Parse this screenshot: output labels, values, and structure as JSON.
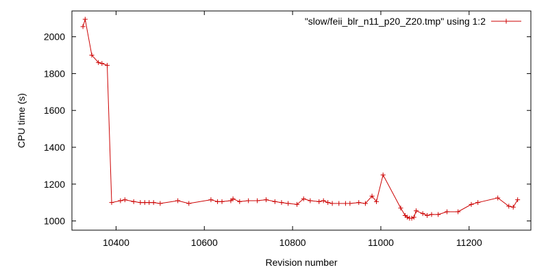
{
  "chart_data": {
    "type": "line",
    "xlabel": "Revision number",
    "ylabel": "CPU time (s)",
    "xlim": [
      10300,
      11340
    ],
    "ylim": [
      950,
      2140
    ],
    "x_ticks": [
      10400,
      10600,
      10800,
      11000,
      11200
    ],
    "y_ticks": [
      1000,
      1200,
      1400,
      1600,
      1800,
      2000
    ],
    "grid": false,
    "legend_position": "top-right",
    "series": [
      {
        "name": "\"slow/feii_blr_n11_p20_Z20.tmp\" using 1:2",
        "color": "#cc0000",
        "marker": "plus",
        "points": [
          [
            10325,
            2055
          ],
          [
            10330,
            2095
          ],
          [
            10345,
            1900
          ],
          [
            10360,
            1860
          ],
          [
            10368,
            1855
          ],
          [
            10380,
            1845
          ],
          [
            10390,
            1100
          ],
          [
            10410,
            1110
          ],
          [
            10420,
            1115
          ],
          [
            10440,
            1105
          ],
          [
            10455,
            1100
          ],
          [
            10465,
            1100
          ],
          [
            10475,
            1100
          ],
          [
            10485,
            1100
          ],
          [
            10500,
            1095
          ],
          [
            10540,
            1110
          ],
          [
            10565,
            1095
          ],
          [
            10615,
            1115
          ],
          [
            10630,
            1105
          ],
          [
            10640,
            1105
          ],
          [
            10660,
            1110
          ],
          [
            10665,
            1120
          ],
          [
            10680,
            1105
          ],
          [
            10700,
            1110
          ],
          [
            10720,
            1110
          ],
          [
            10740,
            1115
          ],
          [
            10760,
            1105
          ],
          [
            10775,
            1100
          ],
          [
            10790,
            1095
          ],
          [
            10810,
            1090
          ],
          [
            10825,
            1120
          ],
          [
            10840,
            1110
          ],
          [
            10860,
            1105
          ],
          [
            10870,
            1110
          ],
          [
            10880,
            1100
          ],
          [
            10890,
            1095
          ],
          [
            10905,
            1095
          ],
          [
            10920,
            1095
          ],
          [
            10930,
            1095
          ],
          [
            10950,
            1100
          ],
          [
            10965,
            1095
          ],
          [
            10980,
            1135
          ],
          [
            10990,
            1105
          ],
          [
            11005,
            1250
          ],
          [
            11045,
            1070
          ],
          [
            11055,
            1030
          ],
          [
            11060,
            1020
          ],
          [
            11065,
            1015
          ],
          [
            11070,
            1015
          ],
          [
            11075,
            1020
          ],
          [
            11080,
            1055
          ],
          [
            11095,
            1040
          ],
          [
            11105,
            1030
          ],
          [
            11115,
            1035
          ],
          [
            11130,
            1035
          ],
          [
            11150,
            1050
          ],
          [
            11175,
            1050
          ],
          [
            11205,
            1090
          ],
          [
            11220,
            1100
          ],
          [
            11265,
            1125
          ],
          [
            11290,
            1080
          ],
          [
            11300,
            1075
          ],
          [
            11310,
            1115
          ]
        ]
      }
    ]
  }
}
